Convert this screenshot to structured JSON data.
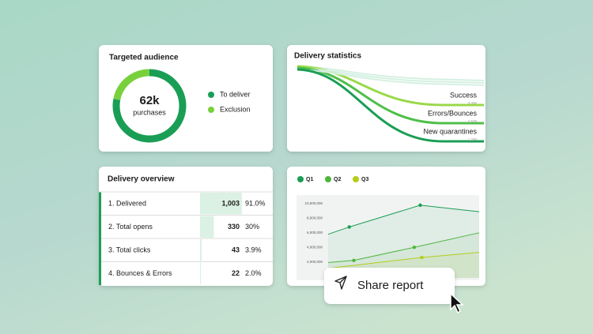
{
  "audience": {
    "title": "Targeted audience",
    "center_value": "62k",
    "center_label": "purchases",
    "segments": [
      {
        "name": "To deliver",
        "color": "#1a9e55",
        "value": 78
      },
      {
        "name": "Exclusion",
        "color": "#78d13c",
        "value": 22
      }
    ]
  },
  "delivery_statistics": {
    "title": "Delivery statistics",
    "flows": [
      {
        "name": "Success",
        "count": "3,406",
        "color": "#9ad94a"
      },
      {
        "name": "Errors/Bounces",
        "count": "2,679",
        "color": "#4fbf4a"
      },
      {
        "name": "New quarantines",
        "count": "1,290",
        "color": "#1a9e55"
      }
    ]
  },
  "delivery_overview": {
    "title": "Delivery overview",
    "rows": [
      {
        "name": "1. Delivered",
        "count": "1,003",
        "rate": {
          "value": 91.0,
          "label": "91.0%"
        }
      },
      {
        "name": "2. Total opens",
        "count": "330",
        "rate": {
          "value": 30,
          "label": "30%"
        }
      },
      {
        "name": "3. Total clicks",
        "count": "43",
        "rate": {
          "value": 3.9,
          "label": "3.9%"
        }
      },
      {
        "name": "4. Bounces & Errors",
        "count": "22",
        "rate": {
          "value": 2.0,
          "label": "2.0%"
        }
      }
    ]
  },
  "quarter_chart": {
    "type": "line",
    "xlim": [
      0,
      10
    ],
    "ylim": [
      0,
      11200000
    ],
    "yticks": [
      {
        "value": 2000000,
        "label": "2,000,000"
      },
      {
        "value": 4000000,
        "label": "4,000,000"
      },
      {
        "value": 6000000,
        "label": "6,000,000"
      },
      {
        "value": 8000000,
        "label": "8,000,000"
      },
      {
        "value": 10000000,
        "label": "10,000,000"
      }
    ],
    "series": [
      {
        "name": "Q1",
        "color": "#1a9e55",
        "x": [
          0,
          1.4,
          6.1,
          10
        ],
        "values": [
          5800000,
          6800000,
          9800000,
          8900000
        ]
      },
      {
        "name": "Q2",
        "color": "#4fb53c",
        "x": [
          0,
          1.7,
          5.7,
          10
        ],
        "values": [
          1900000,
          2200000,
          4000000,
          6000000
        ]
      },
      {
        "name": "Q3",
        "color": "#b5cc18",
        "x": [
          0,
          6.2,
          10
        ],
        "values": [
          1100000,
          2600000,
          3300000
        ]
      }
    ]
  },
  "share_button": {
    "label": "Share report"
  }
}
